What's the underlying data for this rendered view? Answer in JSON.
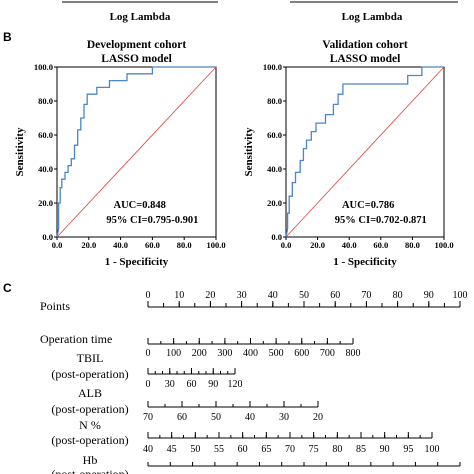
{
  "top_strip": {
    "left_xlabel": "Log Lambda",
    "right_xlabel": "Log Lambda"
  },
  "panel_b_label": "B",
  "panel_c_label": "C",
  "chart_data": [
    {
      "type": "line",
      "title": "Development cohort",
      "subtitle": "LASSO model",
      "xlabel": "1 - Specificity",
      "ylabel": "Sensitivity",
      "xlim": [
        0,
        100
      ],
      "ylim": [
        0,
        100
      ],
      "xticks": [
        "0.0",
        "20.0",
        "40.0",
        "60.0",
        "80.0",
        "100.0"
      ],
      "yticks": [
        "0.0",
        "20.0",
        "40.0",
        "60.0",
        "80.0",
        "100.0"
      ],
      "auc_text": "AUC=0.848",
      "ci_text": "95% CI=0.795-0.901",
      "roc_color": "#4a86c8",
      "ref_color": "#d9534f",
      "roc": [
        [
          0,
          0
        ],
        [
          1,
          5
        ],
        [
          1,
          20
        ],
        [
          2,
          20
        ],
        [
          2,
          29
        ],
        [
          3,
          29
        ],
        [
          3,
          34
        ],
        [
          5,
          34
        ],
        [
          5,
          38
        ],
        [
          7,
          38
        ],
        [
          7,
          42
        ],
        [
          9,
          42
        ],
        [
          9,
          46
        ],
        [
          11,
          46
        ],
        [
          11,
          54
        ],
        [
          13,
          54
        ],
        [
          13,
          63
        ],
        [
          15,
          63
        ],
        [
          15,
          70
        ],
        [
          17,
          70
        ],
        [
          17,
          78
        ],
        [
          19,
          78
        ],
        [
          19,
          84
        ],
        [
          25,
          84
        ],
        [
          25,
          88
        ],
        [
          33,
          88
        ],
        [
          33,
          92
        ],
        [
          44,
          92
        ],
        [
          44,
          96
        ],
        [
          60,
          96
        ],
        [
          60,
          100
        ],
        [
          100,
          100
        ]
      ]
    },
    {
      "type": "line",
      "title": "Validation cohort",
      "subtitle": "LASSO model",
      "xlabel": "1 - Specificity",
      "ylabel": "Sensitivity",
      "xlim": [
        0,
        100
      ],
      "ylim": [
        0,
        100
      ],
      "xticks": [
        "0.0",
        "20.0",
        "40.0",
        "60.0",
        "80.0",
        "100.0"
      ],
      "yticks": [
        "0.0",
        "20.0",
        "40.0",
        "60.0",
        "80.0",
        "100.0"
      ],
      "auc_text": "AUC=0.786",
      "ci_text": "95% CI=0.702-0.871",
      "roc_color": "#4a86c8",
      "ref_color": "#d9534f",
      "roc": [
        [
          0,
          0
        ],
        [
          1,
          5
        ],
        [
          1,
          14
        ],
        [
          2,
          14
        ],
        [
          2,
          24
        ],
        [
          4,
          24
        ],
        [
          4,
          32
        ],
        [
          6,
          32
        ],
        [
          6,
          38
        ],
        [
          9,
          38
        ],
        [
          9,
          45
        ],
        [
          11,
          45
        ],
        [
          11,
          52
        ],
        [
          13,
          52
        ],
        [
          13,
          57
        ],
        [
          16,
          57
        ],
        [
          16,
          62
        ],
        [
          19,
          62
        ],
        [
          19,
          67
        ],
        [
          25,
          67
        ],
        [
          25,
          72
        ],
        [
          30,
          72
        ],
        [
          30,
          78
        ],
        [
          33,
          78
        ],
        [
          33,
          84
        ],
        [
          36,
          84
        ],
        [
          36,
          90
        ],
        [
          77,
          90
        ],
        [
          77,
          95
        ],
        [
          86,
          95
        ],
        [
          86,
          100
        ],
        [
          100,
          100
        ]
      ]
    }
  ],
  "nomogram": {
    "rows": [
      {
        "label": [
          "Points"
        ],
        "ticks": [
          "0",
          "10",
          "20",
          "30",
          "40",
          "50",
          "60",
          "70",
          "80",
          "90",
          "100"
        ]
      },
      {
        "label": [
          "Operation time"
        ],
        "ticks": [
          "0",
          "100",
          "200",
          "300",
          "400",
          "500",
          "600",
          "700",
          "800"
        ]
      },
      {
        "label": [
          "TBIL",
          "(post-operation)"
        ],
        "ticks": [
          "0",
          "30",
          "60",
          "90",
          "120"
        ]
      },
      {
        "label": [
          "ALB",
          "(post-operation)"
        ],
        "ticks": [
          "70",
          "60",
          "50",
          "40",
          "30",
          "20"
        ]
      },
      {
        "label": [
          "N %",
          "(post-operation)"
        ],
        "ticks": [
          "40",
          "45",
          "50",
          "55",
          "60",
          "65",
          "70",
          "75",
          "80",
          "85",
          "90",
          "95",
          "100"
        ]
      },
      {
        "label": [
          "Hb",
          "(post-operation)"
        ],
        "ticks": []
      }
    ]
  }
}
